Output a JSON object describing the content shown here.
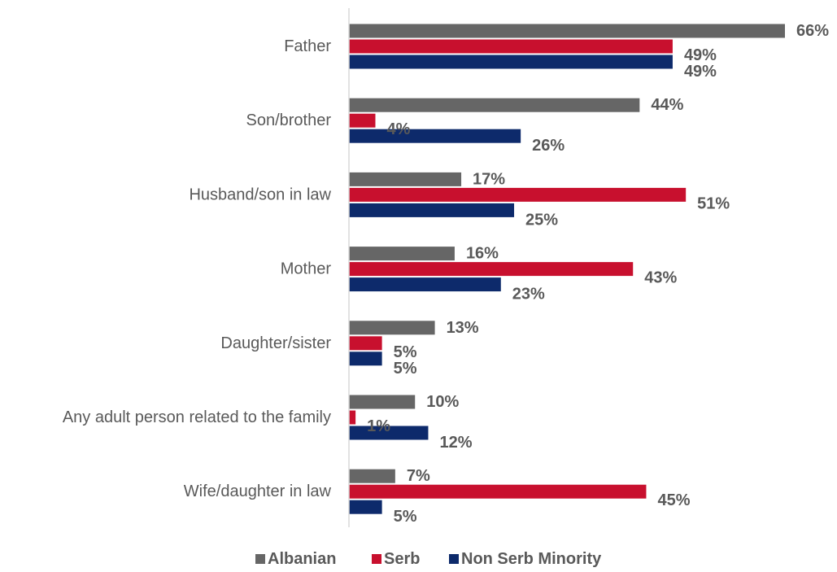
{
  "chart_data": {
    "type": "bar",
    "orientation": "horizontal",
    "categories": [
      "Father",
      "Son/brother",
      "Husband/son in law",
      "Mother",
      "Daughter/sister",
      "Any adult person related to the family",
      "Wife/daughter in law"
    ],
    "series": [
      {
        "name": "Albanian",
        "color": "#666666",
        "values": [
          66,
          44,
          17,
          16,
          13,
          10,
          7
        ],
        "labels": [
          "66%",
          "44%",
          "17%",
          "16%",
          "13%",
          "10%",
          "7%"
        ]
      },
      {
        "name": "Serb",
        "color": "#C8102E",
        "values": [
          49,
          4,
          51,
          43,
          5,
          1,
          45
        ],
        "labels": [
          "49%",
          "4%",
          "51%",
          "43%",
          "5%",
          "1%",
          "45%"
        ]
      },
      {
        "name": "Non Serb Minority",
        "color": "#0D2A6B",
        "values": [
          49,
          26,
          25,
          23,
          5,
          12,
          5
        ],
        "labels": [
          "49%",
          "26%",
          "25%",
          "23%",
          "5%",
          "12%",
          "5%"
        ]
      }
    ],
    "xlim": [
      0,
      66
    ],
    "grid": false,
    "legend_position": "bottom",
    "title": "",
    "xlabel": "",
    "ylabel": ""
  }
}
